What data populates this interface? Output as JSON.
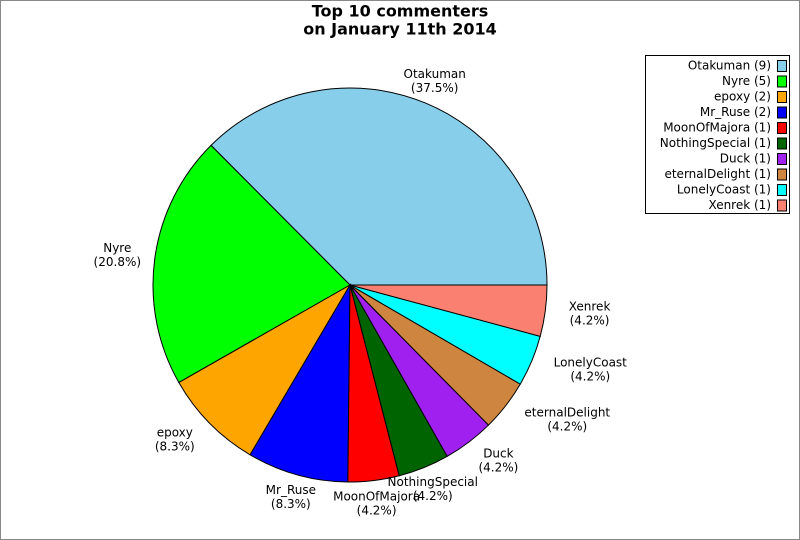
{
  "chart_data": {
    "type": "pie",
    "title": [
      "Top 10 commenters",
      "on January 11th 2014"
    ],
    "categories": [
      "Otakuman",
      "Nyre",
      "epoxy",
      "Mr_Ruse",
      "MoonOfMajora",
      "NothingSpecial",
      "Duck",
      "eternalDelight",
      "LonelyCoast",
      "Xenrek"
    ],
    "values": [
      37.5,
      20.8,
      8.3,
      8.3,
      4.2,
      4.2,
      4.2,
      4.2,
      4.2,
      4.2
    ],
    "value_labels": [
      "(37.5%)",
      "(20.8%)",
      "(8.3%)",
      "(8.3%)",
      "(4.2%)",
      "(4.2%)",
      "(4.2%)",
      "(4.2%)",
      "(4.2%)",
      "(4.2%)"
    ],
    "legend_labels": [
      "Otakuman (9)",
      "Nyre (5)",
      "epoxy (2)",
      "Mr_Ruse (2)",
      "MoonOfMajora (1)",
      "NothingSpecial (1)",
      "Duck (1)",
      "eternalDelight (1)",
      "LonelyCoast (1)",
      "Xenrek (1)"
    ],
    "colors": [
      "#87ceeb",
      "#00ff00",
      "#ffa500",
      "#0000ff",
      "#ff0000",
      "#006400",
      "#a020f0",
      "#cd853f",
      "#00ffff",
      "#fa8072"
    ],
    "legend": "top-right"
  }
}
